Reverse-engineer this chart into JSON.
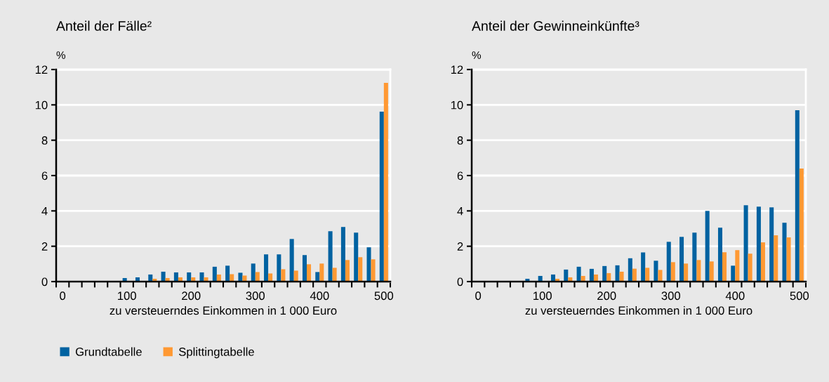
{
  "chart_data": [
    {
      "type": "bar",
      "title": "Anteil der Fälle²",
      "ylabel": "%",
      "xlabel": "zu versteuerndes Einkommen in 1 000 Euro",
      "categories": [
        "0",
        null,
        null,
        null,
        null,
        "100",
        null,
        null,
        null,
        null,
        "200",
        null,
        null,
        null,
        null,
        "300",
        null,
        null,
        null,
        null,
        "400",
        null,
        null,
        null,
        null,
        "500"
      ],
      "series": [
        {
          "name": "Grundtabelle",
          "color": "#0062a1",
          "values": [
            null,
            null,
            null,
            null,
            null,
            0.2,
            0.24,
            0.4,
            0.56,
            0.52,
            0.52,
            0.52,
            0.84,
            0.9,
            0.5,
            1.02,
            1.54,
            1.54,
            2.41,
            1.5,
            0.54,
            2.85,
            3.09,
            2.77,
            1.94,
            9.62
          ]
        },
        {
          "name": "Splittingtabelle",
          "color": "#ff9933",
          "values": [
            null,
            null,
            null,
            null,
            null,
            null,
            null,
            0.16,
            0.2,
            0.24,
            0.24,
            0.24,
            0.4,
            0.42,
            0.34,
            0.54,
            0.46,
            0.7,
            0.62,
            0.98,
            1.02,
            0.78,
            1.22,
            1.38,
            1.26,
            11.25
          ]
        }
      ],
      "ylim": [
        0,
        12
      ],
      "yticks": [
        0,
        2,
        4,
        6,
        8,
        10,
        12
      ],
      "grid": "y",
      "legend": "bottom"
    },
    {
      "type": "bar",
      "title": "Anteil der Gewinneinkünfte³",
      "ylabel": "%",
      "xlabel": "zu versteuerndes Einkommen in 1 000 Euro",
      "categories": [
        "0",
        null,
        null,
        null,
        null,
        "100",
        null,
        null,
        null,
        null,
        "200",
        null,
        null,
        null,
        null,
        "300",
        null,
        null,
        null,
        null,
        "400",
        null,
        null,
        null,
        null,
        "500"
      ],
      "series": [
        {
          "color": "#0062a1",
          "values": [
            null,
            null,
            null,
            null,
            0.16,
            0.32,
            0.4,
            0.68,
            0.84,
            0.72,
            0.88,
            0.92,
            1.32,
            1.65,
            1.18,
            2.25,
            2.53,
            2.77,
            4.0,
            3.05,
            0.9,
            4.32,
            4.24,
            4.2,
            3.33,
            9.7
          ]
        },
        {
          "color": "#ff9933",
          "values": [
            null,
            null,
            null,
            null,
            null,
            null,
            0.16,
            0.24,
            0.32,
            0.4,
            0.48,
            0.56,
            0.73,
            0.78,
            0.66,
            1.1,
            1.02,
            1.22,
            1.14,
            1.66,
            1.78,
            1.58,
            2.22,
            2.62,
            2.5,
            6.4
          ]
        }
      ],
      "ylim": [
        0,
        12
      ],
      "yticks": [
        0,
        2,
        4,
        6,
        8,
        10,
        12
      ],
      "grid": "y"
    }
  ]
}
